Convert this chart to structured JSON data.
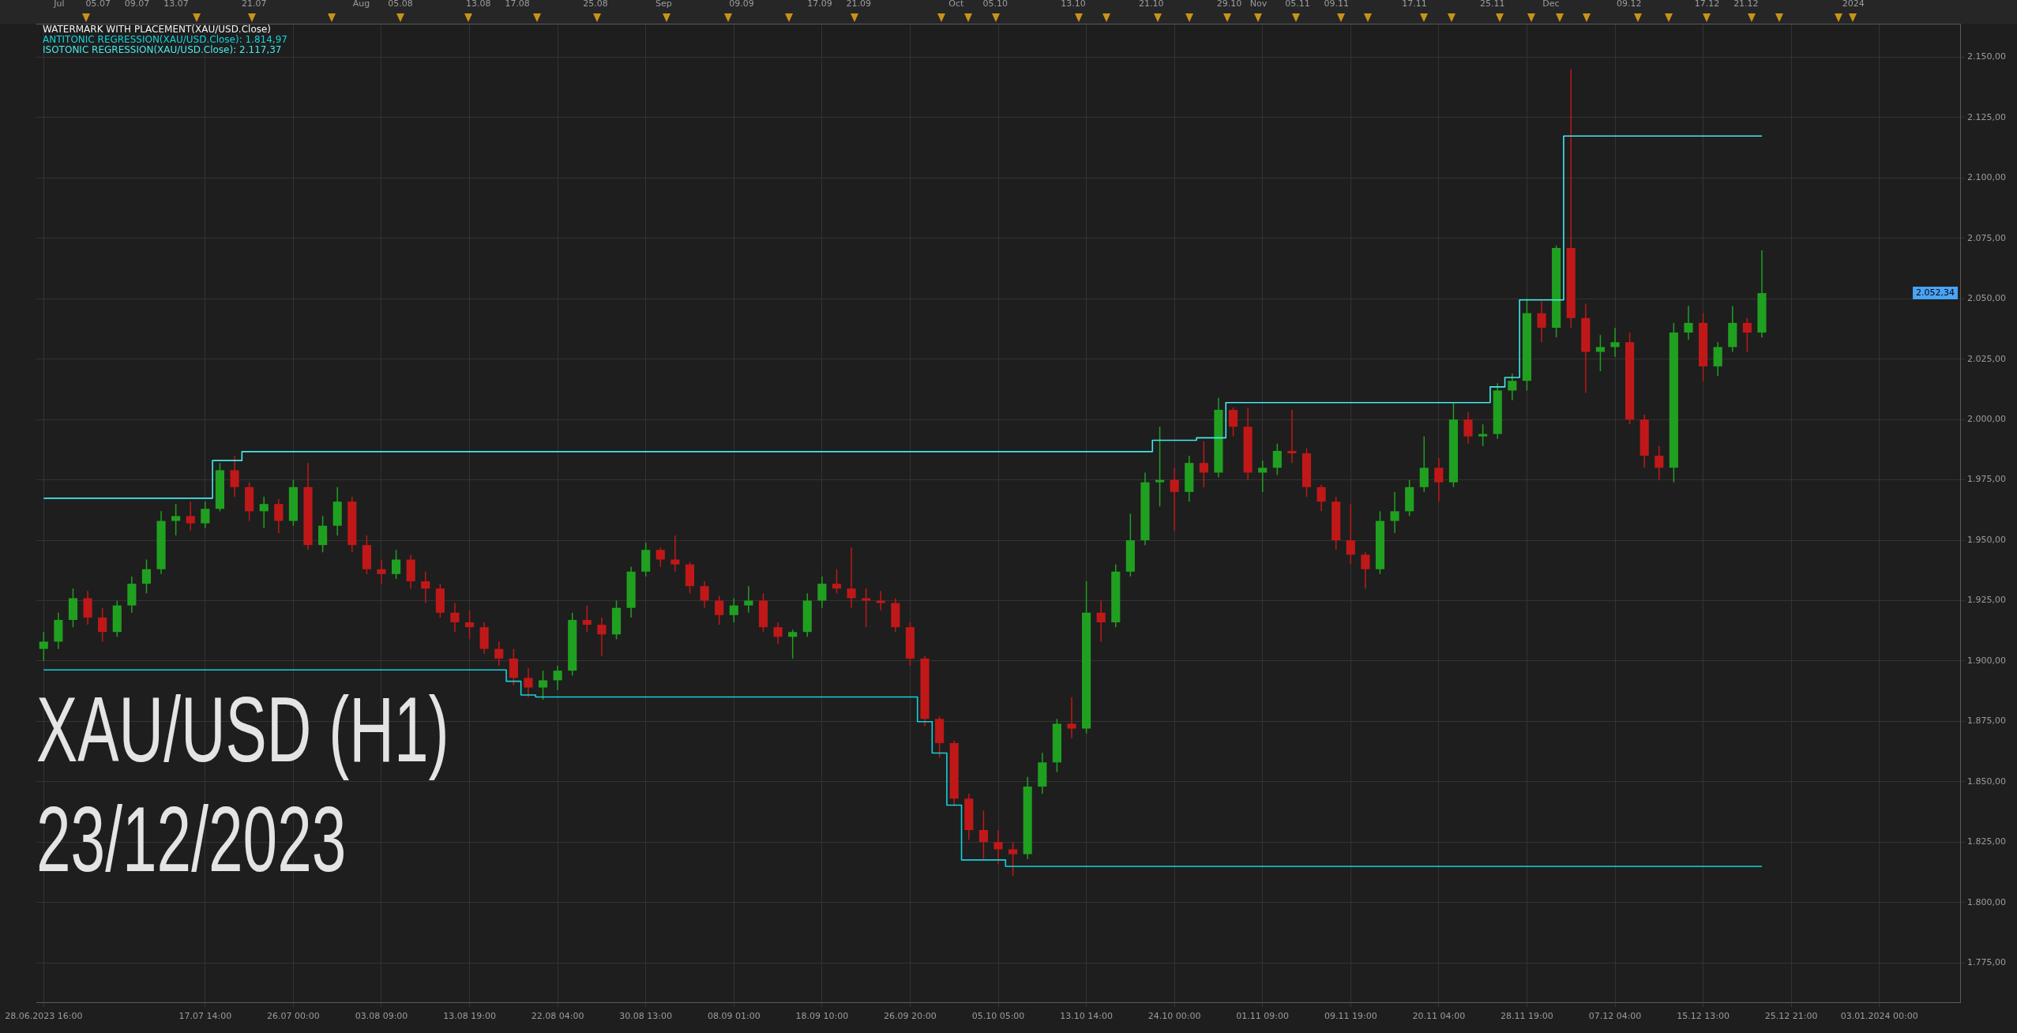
{
  "chart_data": {
    "type": "candlestick",
    "title": "XAU/USD (H1)",
    "subtitle": "23/12/2023",
    "categories": [
      "28.06.2023 16:00",
      null,
      null,
      null,
      null,
      null,
      null,
      null,
      null,
      null,
      null,
      "17.07 14:00",
      null,
      null,
      null,
      null,
      null,
      "26.07 00:00",
      null,
      null,
      null,
      null,
      null,
      "03.08 09:00",
      null,
      null,
      null,
      null,
      null,
      "13.08 19:00",
      null,
      null,
      null,
      null,
      null,
      "22.08 04:00",
      null,
      null,
      null,
      null,
      null,
      "30.08 13:00",
      null,
      null,
      null,
      null,
      null,
      "08.09 01:00",
      null,
      null,
      null,
      null,
      null,
      "18.09 10:00",
      null,
      null,
      null,
      null,
      null,
      "26.09 20:00",
      null,
      null,
      null,
      null,
      null,
      "05.10 05:00",
      null,
      null,
      null,
      null,
      null,
      "13.10 14:00",
      null,
      null,
      null,
      null,
      null,
      "24.10 00:00",
      null,
      null,
      null,
      null,
      null,
      "01.11 09:00",
      null,
      null,
      null,
      null,
      null,
      "09.11 19:00",
      null,
      null,
      null,
      null,
      null,
      "20.11 04:00",
      null,
      null,
      null,
      null,
      null,
      "28.11 19:00",
      null,
      null,
      null,
      null,
      null,
      "07.12 04:00",
      null,
      null,
      null,
      null,
      null,
      "15.12 13:00",
      null,
      null,
      null,
      null,
      null,
      "25.12 21:00",
      null,
      null,
      null,
      null,
      null,
      "03.01.2024 00:00",
      null,
      null,
      null,
      null,
      null
    ],
    "ohlc": [
      [
        1905,
        1912,
        1900,
        1908
      ],
      [
        1908,
        1920,
        1905,
        1917
      ],
      [
        1917,
        1930,
        1914,
        1926
      ],
      [
        1926,
        1929,
        1915,
        1918
      ],
      [
        1918,
        1922,
        1908,
        1912
      ],
      [
        1912,
        1925,
        1910,
        1923
      ],
      [
        1923,
        1935,
        1920,
        1932
      ],
      [
        1932,
        1942,
        1928,
        1938
      ],
      [
        1938,
        1962,
        1936,
        1958
      ],
      [
        1958,
        1965,
        1952,
        1960
      ],
      [
        1960,
        1966,
        1954,
        1957
      ],
      [
        1957,
        1966,
        1955,
        1963
      ],
      [
        1963,
        1982,
        1962,
        1979
      ],
      [
        1979,
        1985,
        1968,
        1972
      ],
      [
        1972,
        1974,
        1958,
        1962
      ],
      [
        1962,
        1968,
        1955,
        1965
      ],
      [
        1965,
        1967,
        1953,
        1958
      ],
      [
        1958,
        1975,
        1956,
        1972
      ],
      [
        1972,
        1982,
        1946,
        1948
      ],
      [
        1948,
        1960,
        1945,
        1956
      ],
      [
        1956,
        1972,
        1952,
        1966
      ],
      [
        1966,
        1968,
        1945,
        1948
      ],
      [
        1948,
        1952,
        1936,
        1938
      ],
      [
        1938,
        1942,
        1932,
        1936
      ],
      [
        1936,
        1946,
        1934,
        1942
      ],
      [
        1942,
        1944,
        1930,
        1933
      ],
      [
        1933,
        1937,
        1924,
        1930
      ],
      [
        1930,
        1932,
        1918,
        1920
      ],
      [
        1920,
        1924,
        1912,
        1916
      ],
      [
        1916,
        1921,
        1909,
        1914
      ],
      [
        1914,
        1916,
        1903,
        1905
      ],
      [
        1905,
        1908,
        1898,
        1901
      ],
      [
        1901,
        1905,
        1890,
        1893
      ],
      [
        1893,
        1897,
        1885,
        1889
      ],
      [
        1889,
        1896,
        1884,
        1892
      ],
      [
        1892,
        1898,
        1888,
        1896
      ],
      [
        1896,
        1920,
        1894,
        1917
      ],
      [
        1917,
        1923,
        1912,
        1915
      ],
      [
        1915,
        1918,
        1902,
        1911
      ],
      [
        1911,
        1925,
        1909,
        1922
      ],
      [
        1922,
        1939,
        1918,
        1937
      ],
      [
        1937,
        1949,
        1935,
        1946
      ],
      [
        1946,
        1947,
        1939,
        1942
      ],
      [
        1942,
        1952,
        1937,
        1940
      ],
      [
        1940,
        1941,
        1928,
        1931
      ],
      [
        1931,
        1933,
        1922,
        1925
      ],
      [
        1925,
        1927,
        1915,
        1919
      ],
      [
        1919,
        1926,
        1916,
        1923
      ],
      [
        1923,
        1931,
        1920,
        1925
      ],
      [
        1925,
        1928,
        1912,
        1914
      ],
      [
        1914,
        1916,
        1907,
        1910
      ],
      [
        1910,
        1913,
        1901,
        1912
      ],
      [
        1912,
        1928,
        1910,
        1925
      ],
      [
        1925,
        1935,
        1922,
        1932
      ],
      [
        1932,
        1938,
        1928,
        1930
      ],
      [
        1930,
        1947,
        1922,
        1926
      ],
      [
        1926,
        1930,
        1914,
        1925
      ],
      [
        1925,
        1929,
        1921,
        1924
      ],
      [
        1924,
        1926,
        1912,
        1914
      ],
      [
        1914,
        1916,
        1898,
        1901
      ],
      [
        1901,
        1902,
        1873,
        1876
      ],
      [
        1876,
        1877,
        1860,
        1866
      ],
      [
        1866,
        1867,
        1840,
        1843
      ],
      [
        1843,
        1845,
        1826,
        1830
      ],
      [
        1830,
        1838,
        1818,
        1825
      ],
      [
        1825,
        1830,
        1816,
        1822
      ],
      [
        1822,
        1825,
        1811,
        1820
      ],
      [
        1820,
        1852,
        1818,
        1848
      ],
      [
        1848,
        1862,
        1845,
        1858
      ],
      [
        1858,
        1876,
        1854,
        1874
      ],
      [
        1874,
        1885,
        1868,
        1872
      ],
      [
        1872,
        1933,
        1870,
        1920
      ],
      [
        1920,
        1925,
        1908,
        1916
      ],
      [
        1916,
        1940,
        1914,
        1937
      ],
      [
        1937,
        1961,
        1935,
        1950
      ],
      [
        1950,
        1978,
        1948,
        1974
      ],
      [
        1974,
        1997,
        1964,
        1975
      ],
      [
        1975,
        1980,
        1954,
        1970
      ],
      [
        1970,
        1985,
        1966,
        1982
      ],
      [
        1982,
        1991,
        1972,
        1978
      ],
      [
        1978,
        2009,
        1976,
        2004
      ],
      [
        2004,
        2005,
        1993,
        1997
      ],
      [
        1997,
        2005,
        1975,
        1978
      ],
      [
        1978,
        1983,
        1970,
        1980
      ],
      [
        1980,
        1990,
        1977,
        1987
      ],
      [
        1987,
        2004,
        1982,
        1986
      ],
      [
        1986,
        1988,
        1968,
        1972
      ],
      [
        1972,
        1973,
        1962,
        1966
      ],
      [
        1966,
        1968,
        1946,
        1950
      ],
      [
        1950,
        1965,
        1940,
        1944
      ],
      [
        1944,
        1945,
        1930,
        1938
      ],
      [
        1938,
        1962,
        1936,
        1958
      ],
      [
        1958,
        1970,
        1953,
        1962
      ],
      [
        1962,
        1975,
        1960,
        1972
      ],
      [
        1972,
        1993,
        1970,
        1980
      ],
      [
        1980,
        1984,
        1966,
        1974
      ],
      [
        1974,
        2007,
        1972,
        2000
      ],
      [
        2000,
        2003,
        1990,
        1993
      ],
      [
        1993,
        1998,
        1989,
        1994
      ],
      [
        1994,
        2015,
        1992,
        2012
      ],
      [
        2012,
        2019,
        2008,
        2016
      ],
      [
        2016,
        2050,
        2012,
        2044
      ],
      [
        2044,
        2049,
        2032,
        2038
      ],
      [
        2038,
        2072,
        2034,
        2071
      ],
      [
        2071,
        2145,
        2038,
        2042
      ],
      [
        2042,
        2048,
        2011,
        2028
      ],
      [
        2028,
        2035,
        2020,
        2030
      ],
      [
        2030,
        2038,
        2026,
        2032
      ],
      [
        2032,
        2036,
        1998,
        2000
      ],
      [
        2000,
        2002,
        1980,
        1985
      ],
      [
        1985,
        1989,
        1975,
        1980
      ],
      [
        1980,
        2040,
        1974,
        2036
      ],
      [
        2036,
        2047,
        2033,
        2040
      ],
      [
        2040,
        2044,
        2016,
        2022
      ],
      [
        2022,
        2032,
        2018,
        2030
      ],
      [
        2030,
        2047,
        2028,
        2040
      ],
      [
        2040,
        2042,
        2028,
        2036
      ],
      [
        2036,
        2070,
        2034,
        2052.34
      ],
      null,
      null,
      null,
      null,
      null,
      null,
      null,
      null,
      null,
      null,
      null,
      null,
      null
    ],
    "colors": [
      "#20a020",
      "#20a020",
      "#20a020",
      "#c01818",
      "#c01818",
      "#20a020",
      "#20a020",
      "#20a020",
      "#20a020",
      "#20a020",
      "#c01818",
      "#20a020",
      "#20a020",
      "#c01818",
      "#c01818",
      "#20a020",
      "#c01818",
      "#20a020",
      "#c01818",
      "#20a020",
      "#20a020",
      "#c01818",
      "#c01818",
      "#c01818",
      "#20a020",
      "#c01818",
      "#c01818",
      "#c01818",
      "#c01818",
      "#c01818",
      "#c01818",
      "#c01818",
      "#c01818",
      "#c01818",
      "#20a020",
      "#20a020",
      "#20a020",
      "#c01818",
      "#c01818",
      "#20a020",
      "#20a020",
      "#20a020",
      "#c01818",
      "#c01818",
      "#c01818",
      "#c01818",
      "#c01818",
      "#20a020",
      "#20a020",
      "#c01818",
      "#c01818",
      "#20a020",
      "#20a020",
      "#20a020",
      "#c01818",
      "#c01818",
      "#c01818",
      "#c01818",
      "#c01818",
      "#c01818",
      "#c01818",
      "#c01818",
      "#c01818",
      "#c01818",
      "#c01818",
      "#c01818",
      "#c01818",
      "#20a020",
      "#20a020",
      "#20a020",
      "#c01818",
      "#20a020",
      "#c01818",
      "#20a020",
      "#20a020",
      "#20a020",
      "#20a020",
      "#c01818",
      "#20a020",
      "#c01818",
      "#20a020",
      "#c01818",
      "#c01818",
      "#20a020",
      "#20a020",
      "#c01818",
      "#c01818",
      "#c01818",
      "#c01818",
      "#c01818",
      "#c01818",
      "#20a020",
      "#20a020",
      "#20a020",
      "#20a020",
      "#c01818",
      "#20a020",
      "#c01818",
      "#20a020",
      "#20a020",
      "#20a020",
      "#20a020",
      "#c01818",
      "#20a020",
      "#c01818",
      "#c01818",
      "#20a020",
      "#20a020",
      "#c01818",
      "#c01818",
      "#c01818",
      "#20a020",
      "#20a020",
      "#c01818",
      "#20a020",
      "#20a020",
      "#c01818",
      "#20a020",
      null,
      null,
      null,
      null,
      null,
      null,
      null,
      null,
      null,
      null,
      null,
      null,
      null
    ],
    "series": [
      {
        "type": "step",
        "name": "ANTITONIC REGRESSION(XAU/USD.Close): 1.814,97",
        "color": "#14d2dc",
        "values": [
          1896.3,
          1896.3,
          1896.3,
          1896.3,
          1896.3,
          1896.3,
          1896.3,
          1896.3,
          1896.3,
          1896.3,
          1896.3,
          1896.3,
          1896.3,
          1896.3,
          1896.3,
          1896.3,
          1896.3,
          1896.3,
          1896.3,
          1896.3,
          1896.3,
          1896.3,
          1896.3,
          1896.3,
          1896.3,
          1896.3,
          1896.3,
          1896.3,
          1896.3,
          1896.3,
          1896.3,
          1896.3,
          1891.6,
          1885.9,
          1885.1,
          1885.1,
          1885.1,
          1885.1,
          1885.1,
          1885.1,
          1885.1,
          1885.1,
          1885.1,
          1885.1,
          1885.1,
          1885.1,
          1885.1,
          1885.1,
          1885.1,
          1885.1,
          1885.1,
          1885.1,
          1885.1,
          1885.1,
          1885.1,
          1885.1,
          1885.1,
          1885.1,
          1885.1,
          1885.1,
          1874.9,
          1861.9,
          1840.3,
          1817.6,
          1817.6,
          1817.6,
          1814.97,
          1814.97,
          1814.97,
          1814.97,
          1814.97,
          1814.97,
          1814.97,
          1814.97,
          1814.97,
          1814.97,
          1814.97,
          1814.97,
          1814.97,
          1814.97,
          1814.97,
          1814.97,
          1814.97,
          1814.97,
          1814.97,
          1814.97,
          1814.97,
          1814.97,
          1814.97,
          1814.97,
          1814.97,
          1814.97,
          1814.97,
          1814.97,
          1814.97,
          1814.97,
          1814.97,
          1814.97,
          1814.97,
          1814.97,
          1814.97,
          1814.97,
          1814.97,
          1814.97,
          1814.97,
          1814.97,
          1814.97,
          1814.97,
          1814.97,
          1814.97,
          1814.97,
          1814.97,
          1814.97,
          1814.97,
          1814.97,
          1814.97,
          1814.97,
          1814.97,
          null,
          null,
          null,
          null,
          null,
          null,
          null,
          null,
          null,
          null,
          null,
          null,
          null
        ]
      },
      {
        "type": "step",
        "name": "ISOTONIC REGRESSION(XAU/USD.Close): 2.117,37",
        "color": "#46e8ec",
        "values": [
          1967.4,
          1967.4,
          1967.4,
          1967.4,
          1967.4,
          1967.4,
          1967.4,
          1967.4,
          1967.4,
          1967.4,
          1967.4,
          1967.4,
          1983.0,
          1983.0,
          1986.7,
          1986.7,
          1986.7,
          1986.7,
          1986.7,
          1986.7,
          1986.7,
          1986.7,
          1986.7,
          1986.7,
          1986.7,
          1986.7,
          1986.7,
          1986.7,
          1986.7,
          1986.7,
          1986.7,
          1986.7,
          1986.7,
          1986.7,
          1986.7,
          1986.7,
          1986.7,
          1986.7,
          1986.7,
          1986.7,
          1986.7,
          1986.7,
          1986.7,
          1986.7,
          1986.7,
          1986.7,
          1986.7,
          1986.7,
          1986.7,
          1986.7,
          1986.7,
          1986.7,
          1986.7,
          1986.7,
          1986.7,
          1986.7,
          1986.7,
          1986.7,
          1986.7,
          1986.7,
          1986.7,
          1986.7,
          1986.7,
          1986.7,
          1986.7,
          1986.7,
          1986.7,
          1986.7,
          1986.7,
          1986.7,
          1986.7,
          1986.7,
          1986.7,
          1986.7,
          1986.7,
          1986.7,
          1991.4,
          1991.4,
          1991.4,
          1992.4,
          1992.4,
          2007.0,
          2007.0,
          2007.0,
          2007.0,
          2007.0,
          2007.0,
          2007.0,
          2007.0,
          2007.0,
          2007.0,
          2007.0,
          2007.0,
          2007.0,
          2007.0,
          2007.0,
          2007.0,
          2007.0,
          2007.0,
          2013.5,
          2017.4,
          2049.5,
          2049.5,
          2049.5,
          2117.37,
          2117.37,
          2117.37,
          2117.37,
          2117.37,
          2117.37,
          2117.37,
          2117.37,
          2117.37,
          2117.37,
          2117.37,
          2117.37,
          2117.37,
          2117.37,
          null,
          null,
          null,
          null,
          null,
          null,
          null,
          null,
          null,
          null,
          null,
          null,
          null
        ]
      }
    ],
    "x2lim": [
      "2023-06-28T16:00",
      "2024-01-11T23:00"
    ],
    "x2ticks": [
      {
        "value": "2023-07",
        "label": "Jul"
      },
      {
        "value": "2023-07-05",
        "label": "05.07"
      },
      {
        "value": "2023-07-09",
        "label": "09.07"
      },
      {
        "value": "2023-07-13",
        "label": "13.07"
      },
      {
        "value": "2023-07-21",
        "label": "21.07"
      },
      {
        "value": "2023-08",
        "label": "Aug"
      },
      {
        "value": "2023-08-05",
        "label": "05.08"
      },
      {
        "value": "2023-08-13",
        "label": "13.08"
      },
      {
        "value": "2023-08-17",
        "label": "17.08"
      },
      {
        "value": "2023-08-25",
        "label": "25.08"
      },
      {
        "value": "2023-09",
        "label": "Sep"
      },
      {
        "value": "2023-09-09",
        "label": "09.09"
      },
      {
        "value": "2023-09-17",
        "label": "17.09"
      },
      {
        "value": "2023-09-21",
        "label": "21.09"
      },
      {
        "value": "2023-10",
        "label": "Oct"
      },
      {
        "value": "2023-10-05",
        "label": "05.10"
      },
      {
        "value": "2023-10-13",
        "label": "13.10"
      },
      {
        "value": "2023-10-21",
        "label": "21.10"
      },
      {
        "value": "2023-10-29",
        "label": "29.10"
      },
      {
        "value": "2023-11",
        "label": "Nov"
      },
      {
        "value": "2023-11-05",
        "label": "05.11"
      },
      {
        "value": "2023-11-09",
        "label": "09.11"
      },
      {
        "value": "2023-11-17",
        "label": "17.11"
      },
      {
        "value": "2023-11-25",
        "label": "25.11"
      },
      {
        "value": "2023-12",
        "label": "Dec"
      },
      {
        "value": "2023-12-09",
        "label": "09.12"
      },
      {
        "value": "2023-12-17",
        "label": "17.12"
      },
      {
        "value": "2023-12-21",
        "label": "21.12"
      },
      {
        "value": "2024",
        "label": "2024"
      }
    ],
    "ylim": [
      1758.7,
      2163.9
    ],
    "yticks": [
      {
        "value": 1775,
        "label": "1.775,00"
      },
      {
        "value": 1800,
        "label": "1.800,00"
      },
      {
        "value": 1825,
        "label": "1.825,00"
      },
      {
        "value": 1850,
        "label": "1.850,00"
      },
      {
        "value": 1875,
        "label": "1.875,00"
      },
      {
        "value": 1900,
        "label": "1.900,00"
      },
      {
        "value": 1925,
        "label": "1.925,00"
      },
      {
        "value": 1950,
        "label": "1.950,00"
      },
      {
        "value": 1975,
        "label": "1.975,00"
      },
      {
        "value": 2000,
        "label": "2.000,00"
      },
      {
        "value": 2025,
        "label": "2.025,00"
      },
      {
        "value": 2050,
        "label": "2.050,00"
      },
      {
        "value": 2075,
        "label": "2.075,00"
      },
      {
        "value": 2100,
        "label": "2.100,00"
      },
      {
        "value": 2125,
        "label": "2.125,00"
      },
      {
        "value": 2150,
        "label": "2.150,00"
      }
    ],
    "grid": true,
    "legend": "top left",
    "marker": "none",
    "annotations": [
      "WATERMARK WITH PLACEMENT(XAU/USD.Close)",
      "2.052,34"
    ]
  }
}
